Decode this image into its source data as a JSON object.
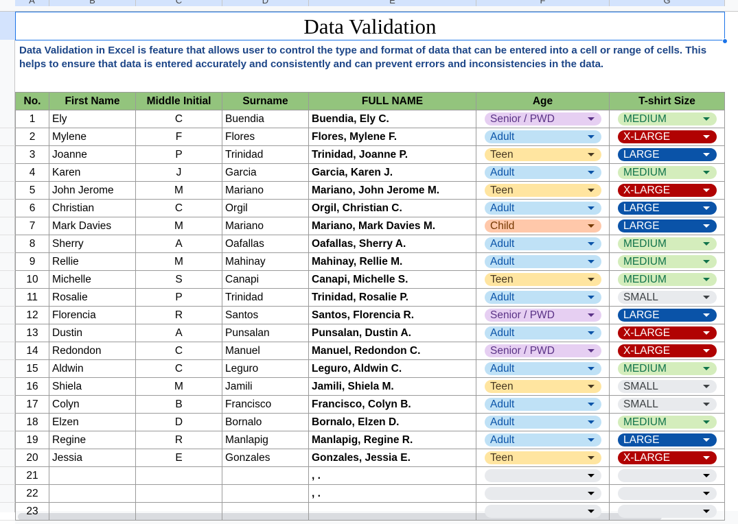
{
  "column_letters": [
    "A",
    "B",
    "C",
    "D",
    "E",
    "F",
    "G"
  ],
  "title": "Data Validation",
  "description": "Data Validation in Excel is feature that allows user to control the type and format of data that can be entered into a cell or range of cells. This helps to ensure that data is entered accurately and consistently and can prevent errors and inconsistencies in the data.",
  "table": {
    "headers": [
      "No.",
      "First Name",
      "Middle Initial",
      "Surname",
      "FULL NAME",
      "Age",
      "T-shirt Size"
    ],
    "rows": [
      {
        "no": "1",
        "first": "Ely",
        "mi": "C",
        "surname": "Buendia",
        "full": "Buendia, Ely C.",
        "age": "Senior / PWD",
        "size": "MEDIUM"
      },
      {
        "no": "2",
        "first": "Mylene",
        "mi": "F",
        "surname": "Flores",
        "full": "Flores, Mylene F.",
        "age": "Adult",
        "size": "X-LARGE"
      },
      {
        "no": "3",
        "first": "Joanne",
        "mi": "P",
        "surname": "Trinidad",
        "full": "Trinidad, Joanne P.",
        "age": "Teen",
        "size": "LARGE"
      },
      {
        "no": "4",
        "first": "Karen",
        "mi": "J",
        "surname": "Garcia",
        "full": "Garcia, Karen J.",
        "age": "Adult",
        "size": "MEDIUM"
      },
      {
        "no": "5",
        "first": "John Jerome",
        "mi": "M",
        "surname": "Mariano",
        "full": "Mariano, John Jerome M.",
        "age": "Teen",
        "size": "X-LARGE"
      },
      {
        "no": "6",
        "first": "Christian",
        "mi": "C",
        "surname": "Orgil",
        "full": "Orgil, Christian C.",
        "age": "Adult",
        "size": "LARGE"
      },
      {
        "no": "7",
        "first": "Mark Davies",
        "mi": "M",
        "surname": "Mariano",
        "full": "Mariano, Mark Davies M.",
        "age": "Child",
        "size": "LARGE"
      },
      {
        "no": "8",
        "first": "Sherry",
        "mi": "A",
        "surname": "Oafallas",
        "full": "Oafallas, Sherry A.",
        "age": "Adult",
        "size": "MEDIUM"
      },
      {
        "no": "9",
        "first": "Rellie",
        "mi": "M",
        "surname": "Mahinay",
        "full": "Mahinay, Rellie M.",
        "age": "Adult",
        "size": "MEDIUM"
      },
      {
        "no": "10",
        "first": "Michelle",
        "mi": "S",
        "surname": "Canapi",
        "full": "Canapi, Michelle S.",
        "age": "Teen",
        "size": "MEDIUM"
      },
      {
        "no": "11",
        "first": "Rosalie",
        "mi": "P",
        "surname": "Trinidad",
        "full": "Trinidad, Rosalie P.",
        "age": "Adult",
        "size": "SMALL"
      },
      {
        "no": "12",
        "first": "Florencia",
        "mi": "R",
        "surname": "Santos",
        "full": "Santos, Florencia R.",
        "age": "Senior / PWD",
        "size": "LARGE"
      },
      {
        "no": "13",
        "first": "Dustin",
        "mi": "A",
        "surname": "Punsalan",
        "full": "Punsalan, Dustin A.",
        "age": "Adult",
        "size": "X-LARGE"
      },
      {
        "no": "14",
        "first": "Redondon",
        "mi": "C",
        "surname": "Manuel",
        "full": "Manuel, Redondon C.",
        "age": "Senior / PWD",
        "size": "X-LARGE"
      },
      {
        "no": "15",
        "first": "Aldwin",
        "mi": "C",
        "surname": "Leguro",
        "full": "Leguro, Aldwin  C.",
        "age": "Adult",
        "size": "MEDIUM"
      },
      {
        "no": "16",
        "first": "Shiela",
        "mi": "M",
        "surname": "Jamili",
        "full": "Jamili, Shiela M.",
        "age": "Teen",
        "size": "SMALL"
      },
      {
        "no": "17",
        "first": "Colyn",
        "mi": "B",
        "surname": "Francisco",
        "full": "Francisco, Colyn B.",
        "age": "Adult",
        "size": "SMALL"
      },
      {
        "no": "18",
        "first": "Elzen",
        "mi": "D",
        "surname": "Bornalo",
        "full": "Bornalo, Elzen D.",
        "age": "Adult",
        "size": "MEDIUM"
      },
      {
        "no": "19",
        "first": "Regine",
        "mi": "R",
        "surname": "Manlapig",
        "full": "Manlapig, Regine R.",
        "age": "Adult",
        "size": "LARGE"
      },
      {
        "no": "20",
        "first": "Jessia",
        "mi": "E",
        "surname": "Gonzales",
        "full": "Gonzales, Jessia E.",
        "age": "Teen",
        "size": "X-LARGE"
      },
      {
        "no": "21",
        "full": ", ."
      },
      {
        "no": "22",
        "full": ", ."
      },
      {
        "no": "23"
      }
    ]
  }
}
